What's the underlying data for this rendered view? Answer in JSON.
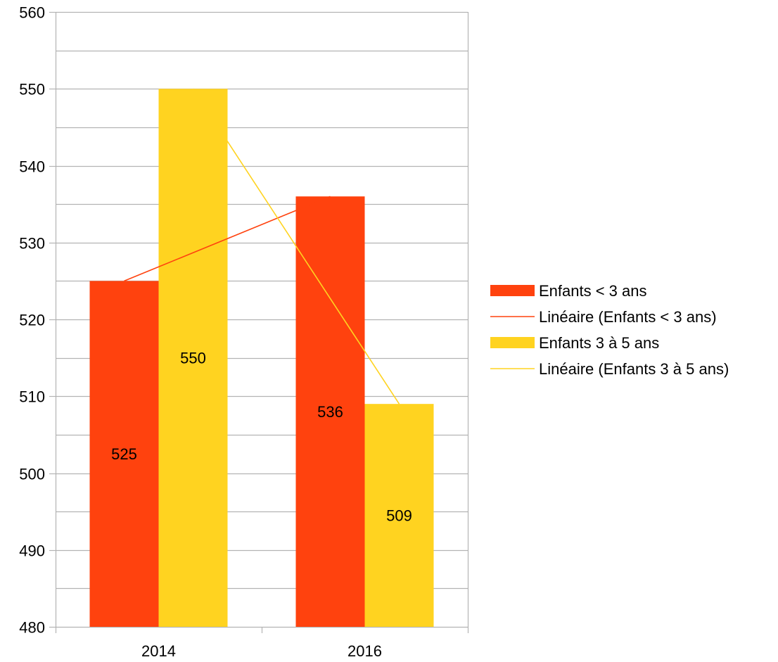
{
  "chart_data": {
    "type": "bar",
    "categories": [
      "2014",
      "2016"
    ],
    "series": [
      {
        "name": "Enfants < 3 ans",
        "values": [
          525,
          536
        ],
        "color": "#FF420E",
        "trendline": {
          "name": "Linéaire (Enfants < 3 ans)",
          "type": "linear",
          "color": "#FF420E"
        }
      },
      {
        "name": "Enfants 3 à 5 ans",
        "values": [
          550,
          509
        ],
        "color": "#FFD320",
        "trendline": {
          "name": "Linéaire (Enfants 3 à 5 ans)",
          "type": "linear",
          "color": "#FFD320"
        }
      }
    ],
    "legend": [
      {
        "label": "Enfants < 3 ans",
        "kind": "bar",
        "color": "#FF420E"
      },
      {
        "label": "Linéaire (Enfants < 3 ans)",
        "kind": "line",
        "color": "#FF420E"
      },
      {
        "label": "Enfants 3 à 5 ans",
        "kind": "bar",
        "color": "#FFD320"
      },
      {
        "label": "Linéaire (Enfants 3 à 5 ans)",
        "kind": "line",
        "color": "#FFD320"
      }
    ],
    "ylim": [
      480,
      560
    ],
    "y_major_ticks": [
      480,
      490,
      500,
      510,
      520,
      530,
      540,
      550,
      560
    ],
    "y_minor_step": 5,
    "grid": true,
    "legend_position": "right",
    "title": "",
    "xlabel": "",
    "ylabel": "",
    "gridline_color": "#B3B3B3",
    "axis_color": "#B3B3B3"
  }
}
